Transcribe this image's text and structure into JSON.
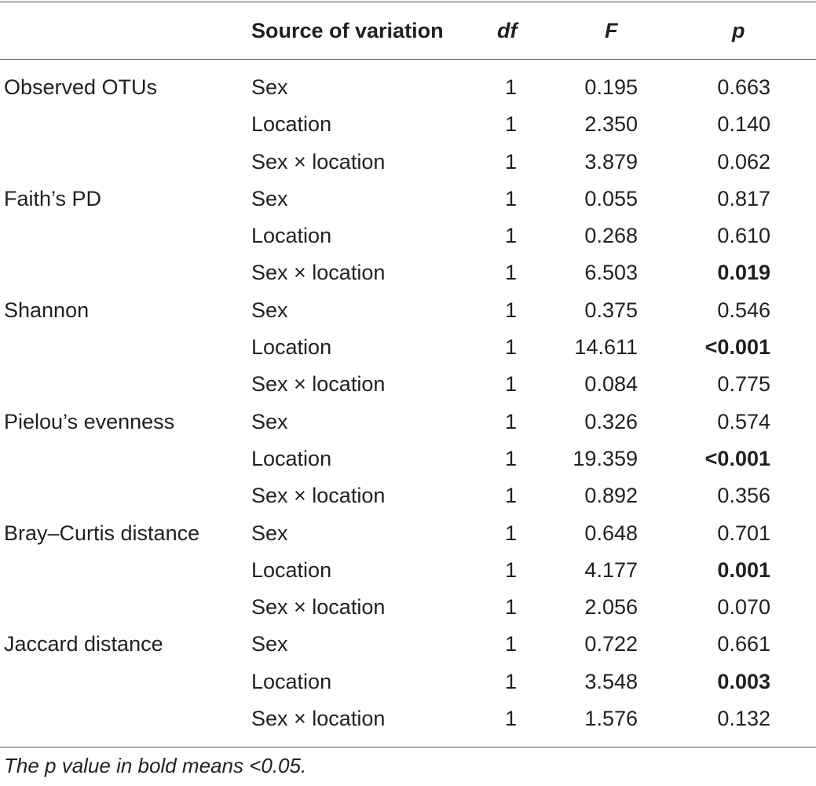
{
  "table": {
    "headers": {
      "measure": "",
      "source": "Source of variation",
      "df": "df",
      "f": "F",
      "p": "p"
    },
    "rows": [
      {
        "measure": "Observed OTUs",
        "source": "Sex",
        "df": "1",
        "f": "0.195",
        "p": "0.663",
        "p_bold": false
      },
      {
        "measure": "",
        "source": "Location",
        "df": "1",
        "f": "2.350",
        "p": "0.140",
        "p_bold": false
      },
      {
        "measure": "",
        "source": "Sex × location",
        "df": "1",
        "f": "3.879",
        "p": "0.062",
        "p_bold": false
      },
      {
        "measure": "Faith’s PD",
        "source": "Sex",
        "df": "1",
        "f": "0.055",
        "p": "0.817",
        "p_bold": false
      },
      {
        "measure": "",
        "source": "Location",
        "df": "1",
        "f": "0.268",
        "p": "0.610",
        "p_bold": false
      },
      {
        "measure": "",
        "source": "Sex × location",
        "df": "1",
        "f": "6.503",
        "p": "0.019",
        "p_bold": true
      },
      {
        "measure": "Shannon",
        "source": "Sex",
        "df": "1",
        "f": "0.375",
        "p": "0.546",
        "p_bold": false
      },
      {
        "measure": "",
        "source": "Location",
        "df": "1",
        "f": "14.611",
        "p": "<0.001",
        "p_bold": true
      },
      {
        "measure": "",
        "source": "Sex × location",
        "df": "1",
        "f": "0.084",
        "p": "0.775",
        "p_bold": false
      },
      {
        "measure": "Pielou’s evenness",
        "source": "Sex",
        "df": "1",
        "f": "0.326",
        "p": "0.574",
        "p_bold": false
      },
      {
        "measure": "",
        "source": "Location",
        "df": "1",
        "f": "19.359",
        "p": "<0.001",
        "p_bold": true
      },
      {
        "measure": "",
        "source": "Sex × location",
        "df": "1",
        "f": "0.892",
        "p": "0.356",
        "p_bold": false
      },
      {
        "measure": "Bray–Curtis distance",
        "source": "Sex",
        "df": "1",
        "f": "0.648",
        "p": "0.701",
        "p_bold": false
      },
      {
        "measure": "",
        "source": "Location",
        "df": "1",
        "f": "4.177",
        "p": "0.001",
        "p_bold": true
      },
      {
        "measure": "",
        "source": "Sex × location",
        "df": "1",
        "f": "2.056",
        "p": "0.070",
        "p_bold": false
      },
      {
        "measure": "Jaccard distance",
        "source": "Sex",
        "df": "1",
        "f": "0.722",
        "p": "0.661",
        "p_bold": false
      },
      {
        "measure": "",
        "source": "Location",
        "df": "1",
        "f": "3.548",
        "p": "0.003",
        "p_bold": true
      },
      {
        "measure": "",
        "source": "Sex × location",
        "df": "1",
        "f": "1.576",
        "p": "0.132",
        "p_bold": false
      }
    ]
  },
  "footnote": "The p value in bold means <0.05."
}
